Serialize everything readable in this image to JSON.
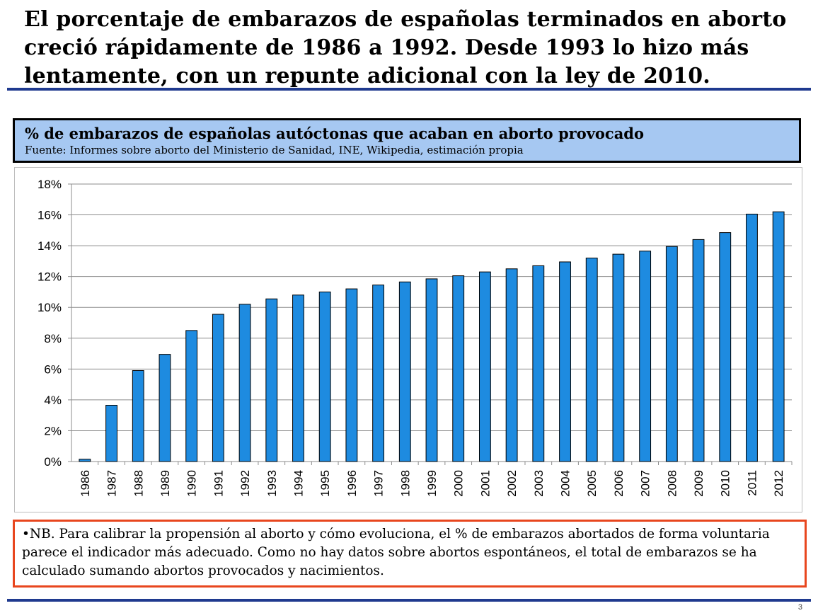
{
  "slide": {
    "title": "El porcentaje de embarazos de españolas terminados en aborto creció rápidamente de 1986 a 1992. Desde 1993 lo hizo más lentamente, con un repunte adicional con la ley de 2010.",
    "note": "•NB. Para calibrar la propensión al aborto y cómo evoluciona, el % de embarazos abortados de forma voluntaria parece el indicador más adecuado. Como no hay datos sobre abortos espontáneos, el total de embarazos se ha calculado sumando abortos provocados y nacimientos.",
    "page_number": "3"
  },
  "chart_data": {
    "type": "bar",
    "title": "% de embarazos de españolas autóctonas que acaban en aborto provocado",
    "subtitle": "Fuente: Informes sobre aborto del Ministerio de Sanidad, INE, Wikipedia, estimación propia",
    "categories": [
      "1986",
      "1987",
      "1988",
      "1989",
      "1990",
      "1991",
      "1992",
      "1993",
      "1994",
      "1995",
      "1996",
      "1997",
      "1998",
      "1999",
      "2000",
      "2001",
      "2002",
      "2003",
      "2004",
      "2005",
      "2006",
      "2007",
      "2008",
      "2009",
      "2010",
      "2011",
      "2012"
    ],
    "values": [
      0.15,
      3.65,
      5.9,
      6.95,
      8.5,
      9.55,
      10.2,
      10.55,
      10.8,
      11.0,
      11.2,
      11.45,
      11.65,
      11.85,
      12.05,
      12.3,
      12.5,
      12.7,
      12.95,
      13.2,
      13.45,
      13.65,
      13.95,
      14.4,
      14.85,
      16.05,
      16.2
    ],
    "ylim": [
      0,
      18
    ],
    "yticks": [
      0,
      2,
      4,
      6,
      8,
      10,
      12,
      14,
      16,
      18
    ],
    "ytick_labels": [
      "0%",
      "2%",
      "4%",
      "6%",
      "8%",
      "10%",
      "12%",
      "14%",
      "16%",
      "18%"
    ],
    "xlabel": "",
    "ylabel": "",
    "grid": true,
    "legend": "none",
    "bar_color": "#1e8be0",
    "bar_edge_color": "#000000"
  }
}
